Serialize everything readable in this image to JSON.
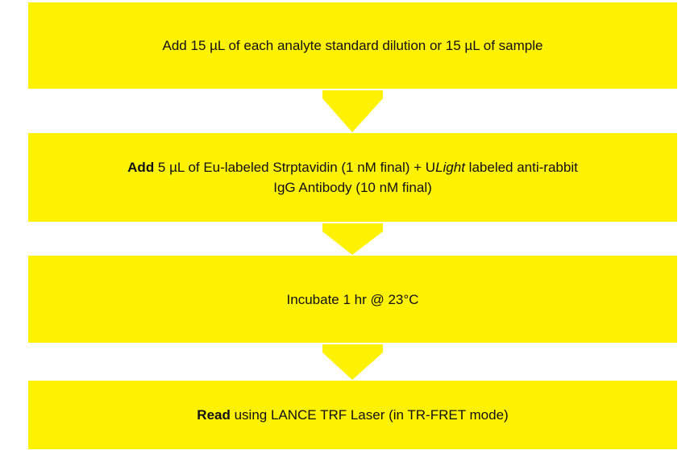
{
  "steps": [
    {
      "text": "Add 15 µL of each analyte standard dilution or 15 µL of sample"
    },
    {
      "bold": "Add",
      "text": " 5 µL of Eu-labeled Strptavidin (1 nM final) + U",
      "italic": "Light",
      "rest": " labeled anti-rabbit",
      "line2": "IgG Antibody (10 nM final)"
    },
    {
      "text": "Incubate 1 hr @ 23°C"
    },
    {
      "bold": "Read",
      "text": " using LANCE TRF Laser (in TR-FRET mode)"
    }
  ]
}
